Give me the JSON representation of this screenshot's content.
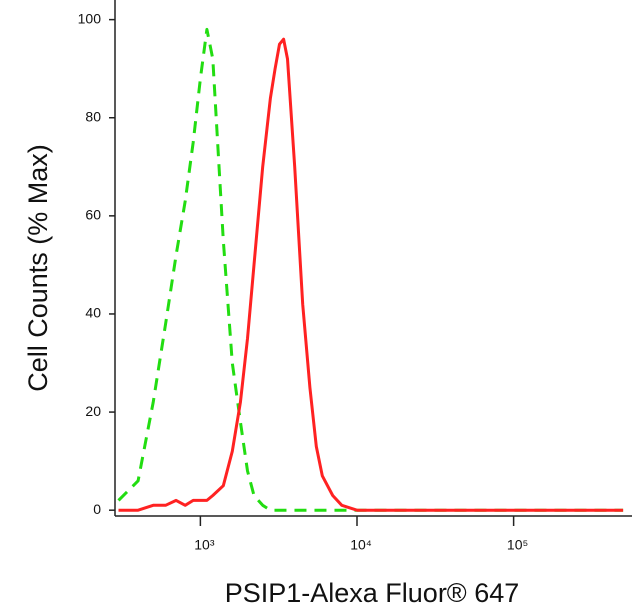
{
  "chart_data": {
    "type": "line",
    "x_label": "PSIP1-Alexa Fluor® 647",
    "y_label": "Cell Counts (% Max)",
    "x_scale": "log",
    "x": [
      300,
      400,
      500,
      600,
      700,
      800,
      900,
      1000,
      1100,
      1200,
      1400,
      1600,
      1800,
      2000,
      2200,
      2500,
      2800,
      3000,
      3200,
      3400,
      3600,
      4000,
      4500,
      5000,
      5500,
      6000,
      7000,
      8000,
      10000,
      20000,
      50000,
      100000,
      200000,
      500000
    ],
    "series": [
      {
        "color": "#22dd11",
        "dash": true,
        "values": [
          2,
          6,
          22,
          38,
          52,
          63,
          75,
          88,
          98,
          92,
          55,
          30,
          18,
          8,
          3,
          1,
          0,
          0,
          0,
          0,
          0,
          0,
          0,
          0,
          0,
          0,
          0,
          0,
          0,
          0,
          0,
          0,
          0,
          0
        ]
      },
      {
        "color": "#ff2222",
        "dash": false,
        "values": [
          0,
          0,
          1,
          1,
          2,
          1,
          2,
          2,
          2,
          3,
          5,
          12,
          22,
          35,
          50,
          70,
          84,
          90,
          95,
          96,
          92,
          70,
          42,
          25,
          13,
          7,
          3,
          1,
          0,
          0,
          0,
          0,
          0,
          0
        ]
      }
    ],
    "xlim": [
      285,
      570000
    ],
    "ylim": [
      -2,
      104
    ],
    "xticks": [
      {
        "value": 1000,
        "label": "10³"
      },
      {
        "value": 10000,
        "label": "10⁴"
      },
      {
        "value": 100000,
        "label": "10⁵"
      }
    ],
    "yticks": [
      0,
      20,
      40,
      60,
      80,
      100
    ]
  }
}
